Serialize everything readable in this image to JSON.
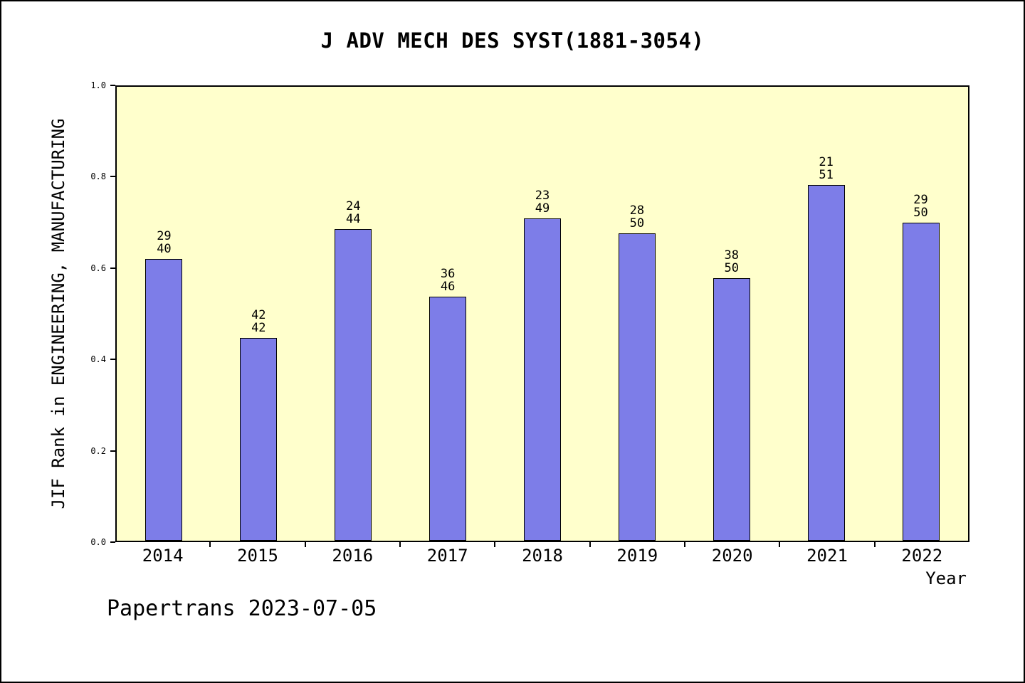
{
  "figure": {
    "footer": "Papertrans 2023-07-05"
  },
  "chart_data": {
    "type": "bar",
    "title": "J ADV MECH DES SYST(1881-3054)",
    "xlabel": "Year",
    "ylabel": "JIF Rank in ENGINEERING, MANUFACTURING",
    "ylim": [
      0.0,
      1.0
    ],
    "yticks": [
      "0.0",
      "0.2",
      "0.4",
      "0.6",
      "0.8",
      "1.0"
    ],
    "categories": [
      "2014",
      "2015",
      "2016",
      "2017",
      "2018",
      "2019",
      "2020",
      "2021",
      "2022"
    ],
    "values": [
      0.62,
      0.447,
      0.686,
      0.538,
      0.71,
      0.677,
      0.578,
      0.784,
      0.7
    ],
    "bar_labels": [
      [
        "29",
        "40"
      ],
      [
        "42",
        "42"
      ],
      [
        "24",
        "44"
      ],
      [
        "36",
        "46"
      ],
      [
        "23",
        "49"
      ],
      [
        "28",
        "50"
      ],
      [
        "38",
        "50"
      ],
      [
        "21",
        "51"
      ],
      [
        "29",
        "50"
      ]
    ],
    "bar_color": "#7d7de8",
    "plot_bg": "#ffffcc",
    "grid": false,
    "legend": false
  }
}
